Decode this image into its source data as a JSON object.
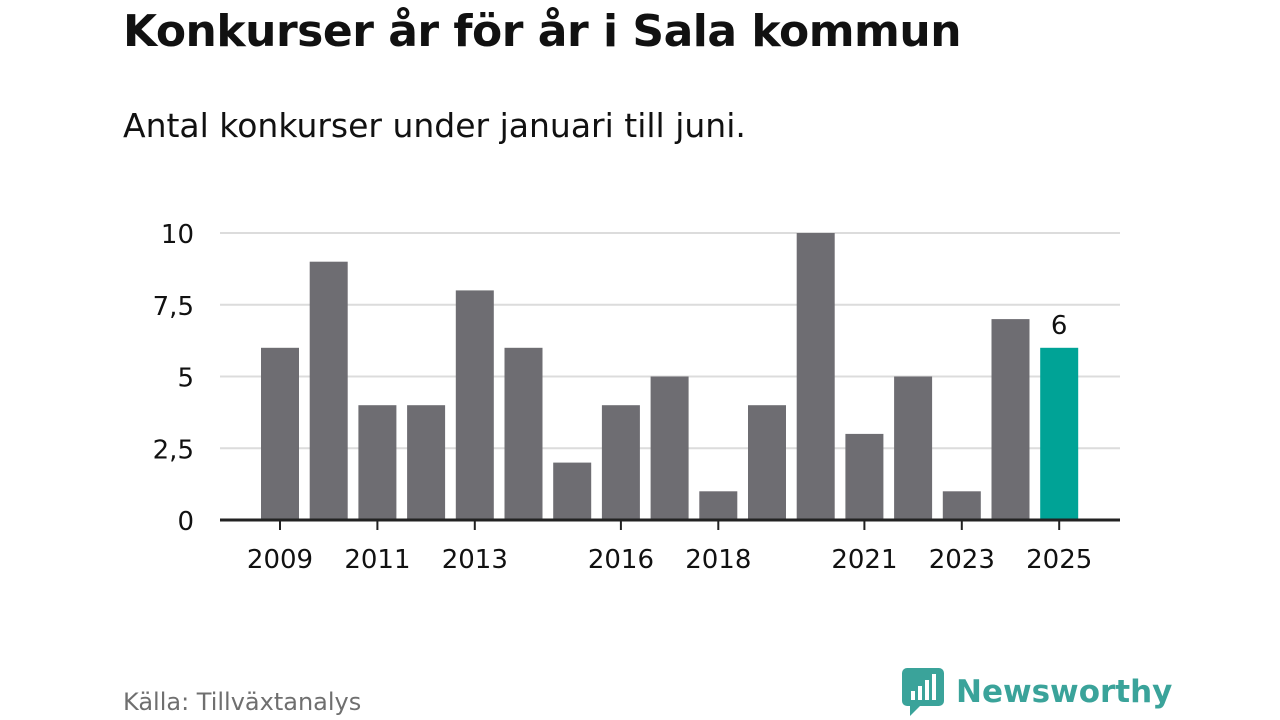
{
  "header": {
    "title": "Konkurser år för år i Sala kommun",
    "subtitle": "Antal konkurser under januari till juni."
  },
  "footer": {
    "source": "Källa: Tillväxtanalys",
    "brand": "Newsworthy",
    "brand_icon": "bar-chart-speech-bubble-icon"
  },
  "colors": {
    "bar": "#6e6d72",
    "highlight": "#00a396",
    "grid": "#dcdcdc",
    "axis": "#222222",
    "text": "#111111",
    "brand": "#3aa39a"
  },
  "chart_data": {
    "type": "bar",
    "categories": [
      "2009",
      "2010",
      "2011",
      "2012",
      "2013",
      "2014",
      "2015",
      "2016",
      "2017",
      "2018",
      "2019",
      "2020",
      "2021",
      "2022",
      "2023",
      "2024",
      "2025"
    ],
    "values": [
      6,
      9,
      4,
      4,
      8,
      6,
      2,
      4,
      5,
      1,
      4,
      10,
      3,
      5,
      1,
      7,
      6
    ],
    "x_tick_labels": [
      "2009",
      "2011",
      "2013",
      "2016",
      "2018",
      "2021",
      "2023",
      "2025"
    ],
    "y_ticks": [
      0,
      2.5,
      5,
      7.5,
      10
    ],
    "y_tick_labels": [
      "0",
      "2,5",
      "5",
      "7,5",
      "10"
    ],
    "ylim": [
      0,
      10
    ],
    "grid": true,
    "highlight_category": "2025",
    "data_labels": [
      {
        "category": "2025",
        "text": "6"
      }
    ],
    "title": "Konkurser år för år i Sala kommun",
    "subtitle": "Antal konkurser under januari till juni.",
    "xlabel": "",
    "ylabel": ""
  }
}
